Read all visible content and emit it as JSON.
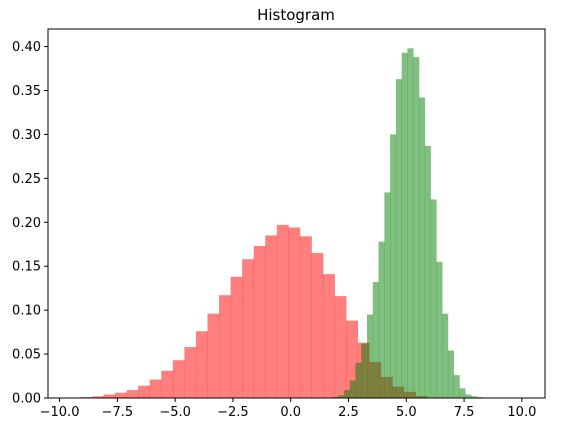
{
  "chart_data": {
    "type": "bar",
    "title": "Histogram",
    "xlabel": "",
    "ylabel": "",
    "xlim": [
      -10.5,
      11.0
    ],
    "ylim": [
      0,
      0.42
    ],
    "xticks": [
      -10.0,
      -7.5,
      -5.0,
      -2.5,
      0.0,
      2.5,
      5.0,
      7.5,
      10.0
    ],
    "xtick_labels": [
      "−10.0",
      "−7.5",
      "−5.0",
      "−2.5",
      "0.0",
      "2.5",
      "5.0",
      "7.5",
      "10.0"
    ],
    "yticks": [
      0.0,
      0.05,
      0.1,
      0.15,
      0.2,
      0.25,
      0.3,
      0.35,
      0.4
    ],
    "ytick_labels": [
      "0.00",
      "0.05",
      "0.10",
      "0.15",
      "0.20",
      "0.25",
      "0.30",
      "0.35",
      "0.40"
    ],
    "grid": false,
    "legend": "none",
    "series": [
      {
        "color": "#ff0000",
        "alpha": 0.5,
        "bin_left": [
          -9.6,
          -9.1,
          -8.6,
          -8.1,
          -7.6,
          -7.1,
          -6.6,
          -6.1,
          -5.6,
          -5.1,
          -4.6,
          -4.1,
          -3.6,
          -3.1,
          -2.6,
          -2.1,
          -1.6,
          -1.1,
          -0.6,
          -0.1,
          0.4,
          0.9,
          1.4,
          1.9,
          2.4,
          2.9,
          3.4,
          3.9,
          4.4,
          4.9,
          5.4
        ],
        "bin_width": 0.5,
        "values": [
          0.0005,
          0.001,
          0.002,
          0.004,
          0.006,
          0.009,
          0.014,
          0.021,
          0.031,
          0.043,
          0.058,
          0.076,
          0.096,
          0.117,
          0.138,
          0.158,
          0.173,
          0.185,
          0.197,
          0.194,
          0.184,
          0.165,
          0.141,
          0.116,
          0.088,
          0.063,
          0.041,
          0.024,
          0.013,
          0.007,
          0.002
        ]
      },
      {
        "color": "#008000",
        "alpha": 0.5,
        "bin_left": [
          1.8,
          2.05,
          2.3,
          2.55,
          2.8,
          3.05,
          3.3,
          3.55,
          3.8,
          4.05,
          4.3,
          4.55,
          4.8,
          5.05,
          5.3,
          5.55,
          5.8,
          6.05,
          6.3,
          6.55,
          6.8,
          7.05,
          7.3,
          7.55,
          7.8,
          8.05
        ],
        "bin_width": 0.25,
        "values": [
          0.001,
          0.003,
          0.009,
          0.02,
          0.04,
          0.062,
          0.095,
          0.132,
          0.178,
          0.234,
          0.3,
          0.363,
          0.393,
          0.398,
          0.388,
          0.342,
          0.287,
          0.226,
          0.155,
          0.096,
          0.054,
          0.026,
          0.011,
          0.004,
          0.002,
          0.001
        ]
      }
    ]
  }
}
